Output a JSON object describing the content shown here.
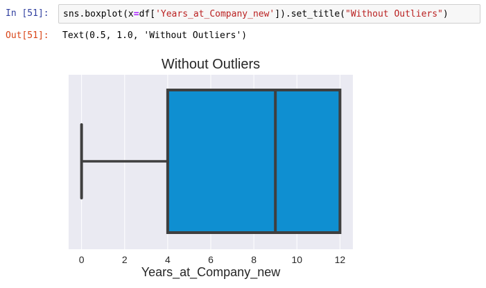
{
  "notebook": {
    "input_prompt": "In [51]:",
    "output_prompt": "Out[51]:",
    "code": {
      "part1": "sns.boxplot(x",
      "op": "=",
      "part2": "df[",
      "str1": "'Years_at_Company_new'",
      "part3": "]).set_title(",
      "str2": "\"Without Outliers\"",
      "part4": ")"
    },
    "output_text": "Text(0.5, 1.0, 'Without Outliers')"
  },
  "chart_data": {
    "type": "box",
    "title": "Without Outliers",
    "xlabel": "Years_at_Company_new",
    "xlim": [
      -0.6,
      12.6
    ],
    "xticks": [
      0,
      2,
      4,
      6,
      8,
      10,
      12
    ],
    "tick_labels": [
      "0",
      "2",
      "4",
      "6",
      "8",
      "10",
      "12"
    ],
    "grid": true,
    "box": {
      "whisker_low": 0,
      "q1": 4,
      "median": 9,
      "q3": 12,
      "whisker_high": 12
    },
    "colors": {
      "box_fill": "#0f8fd1",
      "box_edge": "#3f3f3f",
      "plot_bg": "#eaeaf2",
      "grid": "#ffffff"
    }
  }
}
